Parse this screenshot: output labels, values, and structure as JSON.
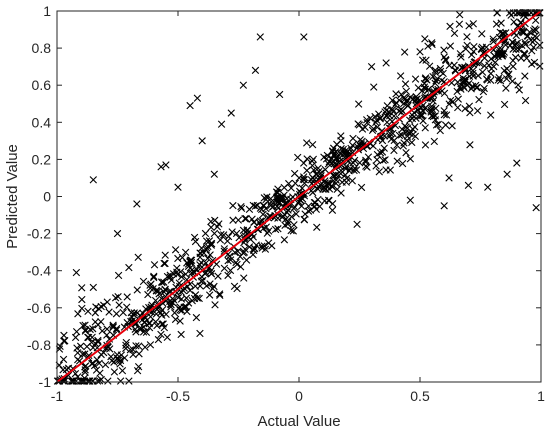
{
  "chart_data": {
    "type": "scatter",
    "xlabel": "Actual Value",
    "ylabel": "Predicted Value",
    "xlim": [
      -1,
      1
    ],
    "ylim": [
      -1,
      1
    ],
    "xticks": [
      "-1",
      "-0.5",
      "0",
      "0.5",
      "1"
    ],
    "yticks": [
      "-1",
      "-0.8",
      "-0.6",
      "-0.4",
      "-0.2",
      "0",
      "0.2",
      "0.4",
      "0.6",
      "0.8",
      "1"
    ],
    "marker": "x",
    "marker_color": "#000000",
    "reference_line": {
      "from": [
        -1,
        -1
      ],
      "to": [
        1,
        1
      ],
      "color": "#e8000b"
    },
    "grid": false,
    "n_points": 1100,
    "noise_sd": 0.12,
    "outliers": [
      [
        -0.16,
        0.86
      ],
      [
        0.02,
        0.86
      ],
      [
        -0.85,
        0.09
      ],
      [
        -0.67,
        -0.04
      ],
      [
        -0.42,
        0.53
      ],
      [
        -0.45,
        0.49
      ],
      [
        -0.55,
        0.17
      ],
      [
        -0.57,
        0.16
      ],
      [
        -0.28,
        0.45
      ],
      [
        -0.18,
        0.68
      ],
      [
        -0.23,
        0.6
      ],
      [
        -0.32,
        0.39
      ],
      [
        0.98,
        -0.06
      ],
      [
        0.6,
        -0.05
      ],
      [
        -0.08,
        0.55
      ],
      [
        -0.92,
        -0.41
      ],
      [
        -0.85,
        -0.49
      ],
      [
        -0.6,
        -0.43
      ],
      [
        0.3,
        0.7
      ],
      [
        0.36,
        0.72
      ],
      [
        0.52,
        0.85
      ],
      [
        0.55,
        0.82
      ],
      [
        0.9,
        0.18
      ],
      [
        0.78,
        0.05
      ],
      [
        0.62,
        0.1
      ],
      [
        0.5,
        0.78
      ],
      [
        -0.4,
        0.3
      ],
      [
        0.24,
        -0.15
      ],
      [
        0.46,
        -0.02
      ],
      [
        -0.75,
        -0.2
      ],
      [
        0.86,
        0.12
      ],
      [
        0.7,
        0.06
      ],
      [
        0.42,
        0.65
      ],
      [
        -0.35,
        0.12
      ],
      [
        -0.5,
        0.05
      ]
    ]
  }
}
